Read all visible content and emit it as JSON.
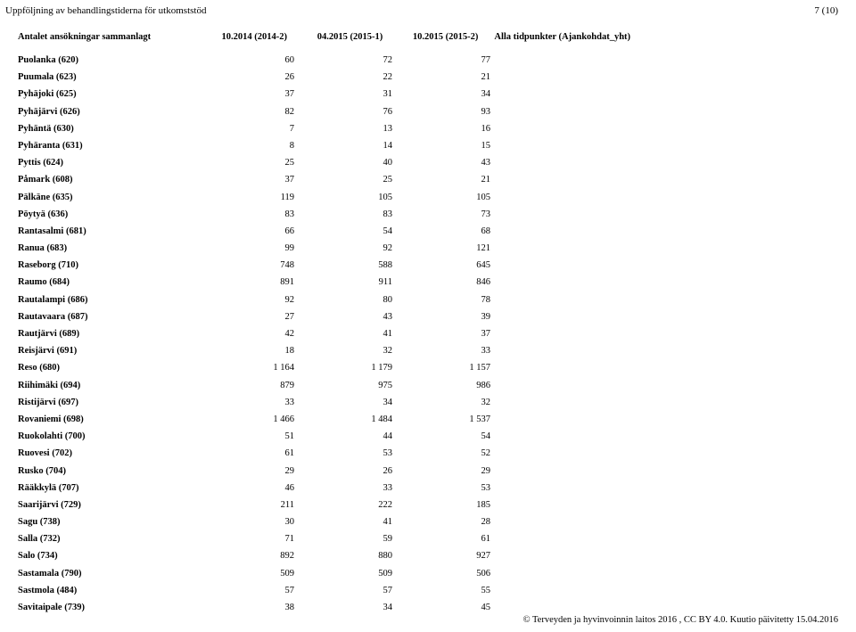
{
  "header": {
    "title": "Uppföljning av behandlingstiderna för utkomststöd",
    "page_num": "7 (10)"
  },
  "table": {
    "columns": {
      "label": "Antalet ansökningar sammanlagt",
      "c1": "10.2014 (2014-2)",
      "c2": "04.2015 (2015-1)",
      "c3": "10.2015 (2015-2)",
      "extra": "Alla tidpunkter (Ajankohdat_yht)"
    },
    "rows": [
      {
        "label": "Puolanka (620)",
        "c1": "60",
        "c2": "72",
        "c3": "77"
      },
      {
        "label": "Puumala (623)",
        "c1": "26",
        "c2": "22",
        "c3": "21"
      },
      {
        "label": "Pyhäjoki (625)",
        "c1": "37",
        "c2": "31",
        "c3": "34"
      },
      {
        "label": "Pyhäjärvi (626)",
        "c1": "82",
        "c2": "76",
        "c3": "93"
      },
      {
        "label": "Pyhäntä (630)",
        "c1": "7",
        "c2": "13",
        "c3": "16"
      },
      {
        "label": "Pyhäranta (631)",
        "c1": "8",
        "c2": "14",
        "c3": "15"
      },
      {
        "label": "Pyttis (624)",
        "c1": "25",
        "c2": "40",
        "c3": "43"
      },
      {
        "label": "Påmark (608)",
        "c1": "37",
        "c2": "25",
        "c3": "21"
      },
      {
        "label": "Pälkäne (635)",
        "c1": "119",
        "c2": "105",
        "c3": "105"
      },
      {
        "label": "Pöytyä (636)",
        "c1": "83",
        "c2": "83",
        "c3": "73"
      },
      {
        "label": "Rantasalmi (681)",
        "c1": "66",
        "c2": "54",
        "c3": "68"
      },
      {
        "label": "Ranua (683)",
        "c1": "99",
        "c2": "92",
        "c3": "121"
      },
      {
        "label": "Raseborg (710)",
        "c1": "748",
        "c2": "588",
        "c3": "645"
      },
      {
        "label": "Raumo (684)",
        "c1": "891",
        "c2": "911",
        "c3": "846"
      },
      {
        "label": "Rautalampi (686)",
        "c1": "92",
        "c2": "80",
        "c3": "78"
      },
      {
        "label": "Rautavaara (687)",
        "c1": "27",
        "c2": "43",
        "c3": "39"
      },
      {
        "label": "Rautjärvi (689)",
        "c1": "42",
        "c2": "41",
        "c3": "37"
      },
      {
        "label": "Reisjärvi (691)",
        "c1": "18",
        "c2": "32",
        "c3": "33"
      },
      {
        "label": "Reso (680)",
        "c1": "1 164",
        "c2": "1 179",
        "c3": "1 157"
      },
      {
        "label": "Riihimäki (694)",
        "c1": "879",
        "c2": "975",
        "c3": "986"
      },
      {
        "label": "Ristijärvi (697)",
        "c1": "33",
        "c2": "34",
        "c3": "32"
      },
      {
        "label": "Rovaniemi (698)",
        "c1": "1 466",
        "c2": "1 484",
        "c3": "1 537"
      },
      {
        "label": "Ruokolahti (700)",
        "c1": "51",
        "c2": "44",
        "c3": "54"
      },
      {
        "label": "Ruovesi (702)",
        "c1": "61",
        "c2": "53",
        "c3": "52"
      },
      {
        "label": "Rusko (704)",
        "c1": "29",
        "c2": "26",
        "c3": "29"
      },
      {
        "label": "Rääkkylä (707)",
        "c1": "46",
        "c2": "33",
        "c3": "53"
      },
      {
        "label": "Saarijärvi (729)",
        "c1": "211",
        "c2": "222",
        "c3": "185"
      },
      {
        "label": "Sagu (738)",
        "c1": "30",
        "c2": "41",
        "c3": "28"
      },
      {
        "label": "Salla (732)",
        "c1": "71",
        "c2": "59",
        "c3": "61"
      },
      {
        "label": "Salo (734)",
        "c1": "892",
        "c2": "880",
        "c3": "927"
      },
      {
        "label": "Sastamala (790)",
        "c1": "509",
        "c2": "509",
        "c3": "506"
      },
      {
        "label": "Sastmola (484)",
        "c1": "57",
        "c2": "57",
        "c3": "55"
      },
      {
        "label": "Savitaipale (739)",
        "c1": "38",
        "c2": "34",
        "c3": "45"
      }
    ]
  },
  "footer": {
    "text": "© Terveyden ja hyvinvoinnin laitos 2016 , CC BY 4.0.  Kuutio päivitetty 15.04.2016"
  }
}
